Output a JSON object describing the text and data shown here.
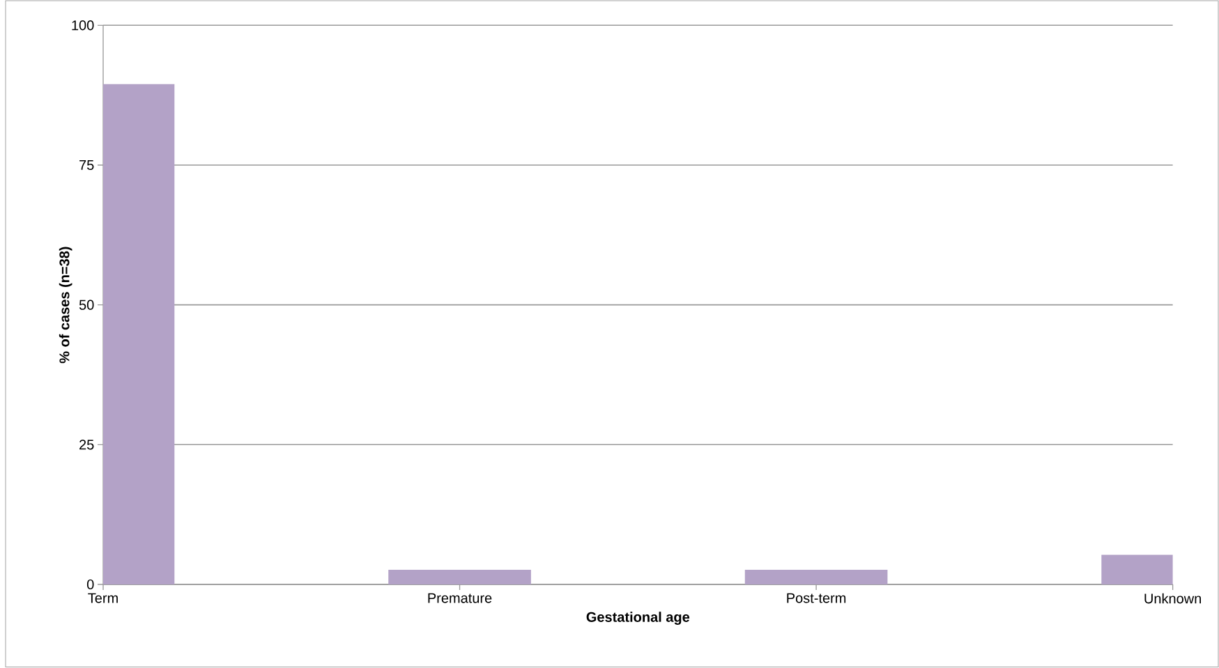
{
  "chart_data": {
    "type": "bar",
    "xlabel": "Gestational age",
    "ylabel": "% of cases (n=38)",
    "categories": [
      "Term",
      "Premature",
      "Post-term",
      "Unknown"
    ],
    "values": [
      89.5,
      2.6,
      2.6,
      5.3
    ],
    "color": "#b3a2c7",
    "ylim": [
      0,
      100
    ],
    "yticks": [
      0,
      25,
      50,
      75,
      100
    ],
    "grid": "y"
  }
}
